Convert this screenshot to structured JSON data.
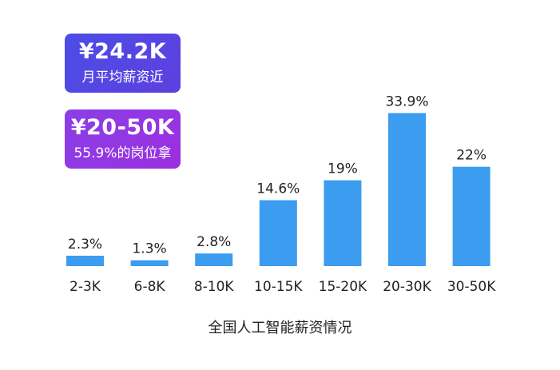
{
  "badges": [
    {
      "value": "¥24.2K",
      "label": "月平均薪资近"
    },
    {
      "value": "¥20-50K",
      "label": "55.9%的岗位拿"
    }
  ],
  "caption": "全国人工智能薪资情况",
  "colors": {
    "bar": "#3b9cf0",
    "text": "#222222"
  },
  "chart_data": {
    "type": "bar",
    "title": "全国人工智能薪资情况",
    "categories": [
      "2-3K",
      "6-8K",
      "8-10K",
      "10-15K",
      "15-20K",
      "20-30K",
      "30-50K"
    ],
    "values": [
      2.3,
      1.3,
      2.8,
      14.6,
      19,
      33.9,
      22
    ],
    "data_labels": [
      "2.3%",
      "1.3%",
      "2.8%",
      "14.6%",
      "19%",
      "33.9%",
      "22%"
    ],
    "unit": "%",
    "grid": false,
    "legend": "none"
  }
}
